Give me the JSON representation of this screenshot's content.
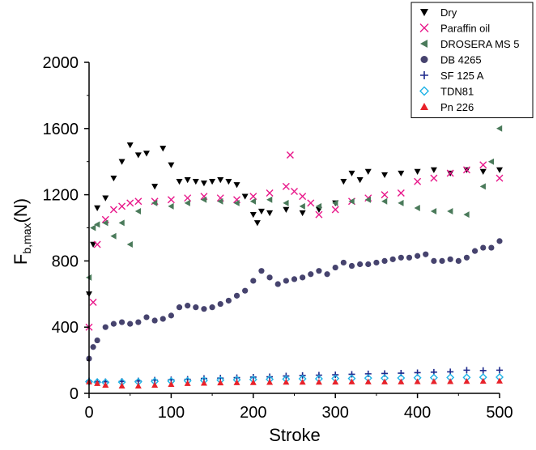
{
  "chart_data": {
    "type": "scatter",
    "xlabel": "Stroke",
    "ylabel_main": "F",
    "ylabel_sub": "b,max",
    "ylabel_unit": "(N)",
    "xlim": [
      0,
      500
    ],
    "ylim": [
      0,
      2000
    ],
    "xticks": [
      "0",
      "100",
      "200",
      "300",
      "400",
      "500"
    ],
    "yticks": [
      "0",
      "400",
      "800",
      "1200",
      "1600",
      "2000"
    ],
    "grid": false,
    "legend_position": "top-right",
    "series": [
      {
        "name": "Dry",
        "marker": "triangle-down",
        "color": "#000000",
        "points": [
          [
            0,
            600
          ],
          [
            5,
            900
          ],
          [
            10,
            1120
          ],
          [
            20,
            1180
          ],
          [
            30,
            1300
          ],
          [
            40,
            1400
          ],
          [
            50,
            1500
          ],
          [
            60,
            1440
          ],
          [
            70,
            1450
          ],
          [
            80,
            1250
          ],
          [
            90,
            1480
          ],
          [
            100,
            1380
          ],
          [
            110,
            1280
          ],
          [
            120,
            1290
          ],
          [
            130,
            1280
          ],
          [
            140,
            1270
          ],
          [
            150,
            1280
          ],
          [
            160,
            1290
          ],
          [
            170,
            1280
          ],
          [
            180,
            1260
          ],
          [
            190,
            1190
          ],
          [
            200,
            1080
          ],
          [
            205,
            1030
          ],
          [
            210,
            1100
          ],
          [
            220,
            1090
          ],
          [
            240,
            1110
          ],
          [
            260,
            1090
          ],
          [
            280,
            1110
          ],
          [
            300,
            1150
          ],
          [
            310,
            1280
          ],
          [
            320,
            1330
          ],
          [
            330,
            1290
          ],
          [
            340,
            1340
          ],
          [
            360,
            1320
          ],
          [
            380,
            1330
          ],
          [
            400,
            1340
          ],
          [
            420,
            1350
          ],
          [
            440,
            1330
          ],
          [
            460,
            1350
          ],
          [
            480,
            1340
          ],
          [
            500,
            1350
          ]
        ]
      },
      {
        "name": "Paraffin oil",
        "marker": "x",
        "color": "#e8178a",
        "points": [
          [
            0,
            400
          ],
          [
            5,
            550
          ],
          [
            10,
            900
          ],
          [
            20,
            1050
          ],
          [
            30,
            1110
          ],
          [
            40,
            1130
          ],
          [
            50,
            1150
          ],
          [
            60,
            1160
          ],
          [
            80,
            1160
          ],
          [
            100,
            1170
          ],
          [
            120,
            1180
          ],
          [
            140,
            1190
          ],
          [
            160,
            1180
          ],
          [
            180,
            1170
          ],
          [
            200,
            1190
          ],
          [
            220,
            1210
          ],
          [
            240,
            1250
          ],
          [
            245,
            1440
          ],
          [
            250,
            1220
          ],
          [
            260,
            1190
          ],
          [
            270,
            1150
          ],
          [
            280,
            1080
          ],
          [
            300,
            1110
          ],
          [
            320,
            1160
          ],
          [
            340,
            1180
          ],
          [
            360,
            1200
          ],
          [
            380,
            1210
          ],
          [
            400,
            1280
          ],
          [
            420,
            1300
          ],
          [
            440,
            1330
          ],
          [
            460,
            1350
          ],
          [
            480,
            1380
          ],
          [
            500,
            1300
          ]
        ]
      },
      {
        "name": "DROSERA MS 5",
        "marker": "triangle-left",
        "color": "#4a7a5a",
        "points": [
          [
            0,
            700
          ],
          [
            5,
            1000
          ],
          [
            10,
            1020
          ],
          [
            20,
            1030
          ],
          [
            30,
            950
          ],
          [
            40,
            1030
          ],
          [
            50,
            900
          ],
          [
            60,
            1100
          ],
          [
            80,
            1150
          ],
          [
            100,
            1130
          ],
          [
            120,
            1150
          ],
          [
            140,
            1170
          ],
          [
            160,
            1160
          ],
          [
            180,
            1150
          ],
          [
            200,
            1160
          ],
          [
            220,
            1170
          ],
          [
            240,
            1150
          ],
          [
            260,
            1130
          ],
          [
            280,
            1130
          ],
          [
            300,
            1150
          ],
          [
            320,
            1160
          ],
          [
            340,
            1170
          ],
          [
            360,
            1160
          ],
          [
            380,
            1150
          ],
          [
            400,
            1120
          ],
          [
            420,
            1100
          ],
          [
            440,
            1100
          ],
          [
            460,
            1080
          ],
          [
            480,
            1250
          ],
          [
            490,
            1400
          ],
          [
            500,
            1600
          ]
        ]
      },
      {
        "name": "DB 4265",
        "marker": "circle",
        "color": "#46436e",
        "points": [
          [
            0,
            210
          ],
          [
            5,
            280
          ],
          [
            10,
            320
          ],
          [
            20,
            400
          ],
          [
            30,
            420
          ],
          [
            40,
            430
          ],
          [
            50,
            420
          ],
          [
            60,
            430
          ],
          [
            70,
            460
          ],
          [
            80,
            440
          ],
          [
            90,
            450
          ],
          [
            100,
            470
          ],
          [
            110,
            520
          ],
          [
            120,
            530
          ],
          [
            130,
            520
          ],
          [
            140,
            510
          ],
          [
            150,
            520
          ],
          [
            160,
            540
          ],
          [
            170,
            560
          ],
          [
            180,
            590
          ],
          [
            190,
            620
          ],
          [
            200,
            680
          ],
          [
            210,
            740
          ],
          [
            220,
            700
          ],
          [
            230,
            660
          ],
          [
            240,
            680
          ],
          [
            250,
            690
          ],
          [
            260,
            700
          ],
          [
            270,
            720
          ],
          [
            280,
            740
          ],
          [
            290,
            720
          ],
          [
            300,
            760
          ],
          [
            310,
            790
          ],
          [
            320,
            770
          ],
          [
            330,
            780
          ],
          [
            340,
            780
          ],
          [
            350,
            790
          ],
          [
            360,
            800
          ],
          [
            370,
            810
          ],
          [
            380,
            820
          ],
          [
            390,
            820
          ],
          [
            400,
            830
          ],
          [
            410,
            840
          ],
          [
            420,
            800
          ],
          [
            430,
            800
          ],
          [
            440,
            810
          ],
          [
            450,
            800
          ],
          [
            460,
            820
          ],
          [
            470,
            860
          ],
          [
            480,
            880
          ],
          [
            490,
            880
          ],
          [
            500,
            920
          ]
        ]
      },
      {
        "name": "SF 125 A",
        "marker": "plus",
        "color": "#1e2a8c",
        "points": [
          [
            0,
            75
          ],
          [
            10,
            70
          ],
          [
            20,
            70
          ],
          [
            40,
            72
          ],
          [
            60,
            75
          ],
          [
            80,
            80
          ],
          [
            100,
            82
          ],
          [
            120,
            85
          ],
          [
            140,
            90
          ],
          [
            160,
            92
          ],
          [
            180,
            95
          ],
          [
            200,
            98
          ],
          [
            220,
            100
          ],
          [
            240,
            105
          ],
          [
            260,
            108
          ],
          [
            280,
            110
          ],
          [
            300,
            112
          ],
          [
            320,
            115
          ],
          [
            340,
            118
          ],
          [
            360,
            120
          ],
          [
            380,
            122
          ],
          [
            400,
            125
          ],
          [
            420,
            128
          ],
          [
            440,
            130
          ],
          [
            460,
            140
          ],
          [
            480,
            138
          ],
          [
            500,
            140
          ]
        ]
      },
      {
        "name": "TDN81",
        "marker": "diamond",
        "color": "#1eb3e6",
        "points": [
          [
            0,
            70
          ],
          [
            10,
            68
          ],
          [
            20,
            66
          ],
          [
            40,
            68
          ],
          [
            60,
            70
          ],
          [
            80,
            72
          ],
          [
            100,
            74
          ],
          [
            120,
            76
          ],
          [
            140,
            78
          ],
          [
            160,
            80
          ],
          [
            180,
            82
          ],
          [
            200,
            84
          ],
          [
            220,
            85
          ],
          [
            240,
            86
          ],
          [
            260,
            88
          ],
          [
            280,
            88
          ],
          [
            300,
            90
          ],
          [
            320,
            90
          ],
          [
            340,
            92
          ],
          [
            360,
            92
          ],
          [
            380,
            93
          ],
          [
            400,
            94
          ],
          [
            420,
            95
          ],
          [
            440,
            96
          ],
          [
            460,
            96
          ],
          [
            480,
            97
          ],
          [
            500,
            98
          ]
        ]
      },
      {
        "name": "Pn 226",
        "marker": "triangle-up",
        "color": "#e8222a",
        "points": [
          [
            0,
            70
          ],
          [
            10,
            60
          ],
          [
            20,
            50
          ],
          [
            40,
            45
          ],
          [
            60,
            45
          ],
          [
            80,
            50
          ],
          [
            100,
            55
          ],
          [
            120,
            60
          ],
          [
            140,
            62
          ],
          [
            160,
            64
          ],
          [
            180,
            65
          ],
          [
            200,
            66
          ],
          [
            220,
            67
          ],
          [
            240,
            68
          ],
          [
            260,
            68
          ],
          [
            280,
            68
          ],
          [
            300,
            69
          ],
          [
            320,
            70
          ],
          [
            340,
            70
          ],
          [
            360,
            70
          ],
          [
            380,
            70
          ],
          [
            400,
            71
          ],
          [
            420,
            72
          ],
          [
            440,
            72
          ],
          [
            460,
            73
          ],
          [
            480,
            74
          ],
          [
            500,
            75
          ]
        ]
      }
    ]
  }
}
